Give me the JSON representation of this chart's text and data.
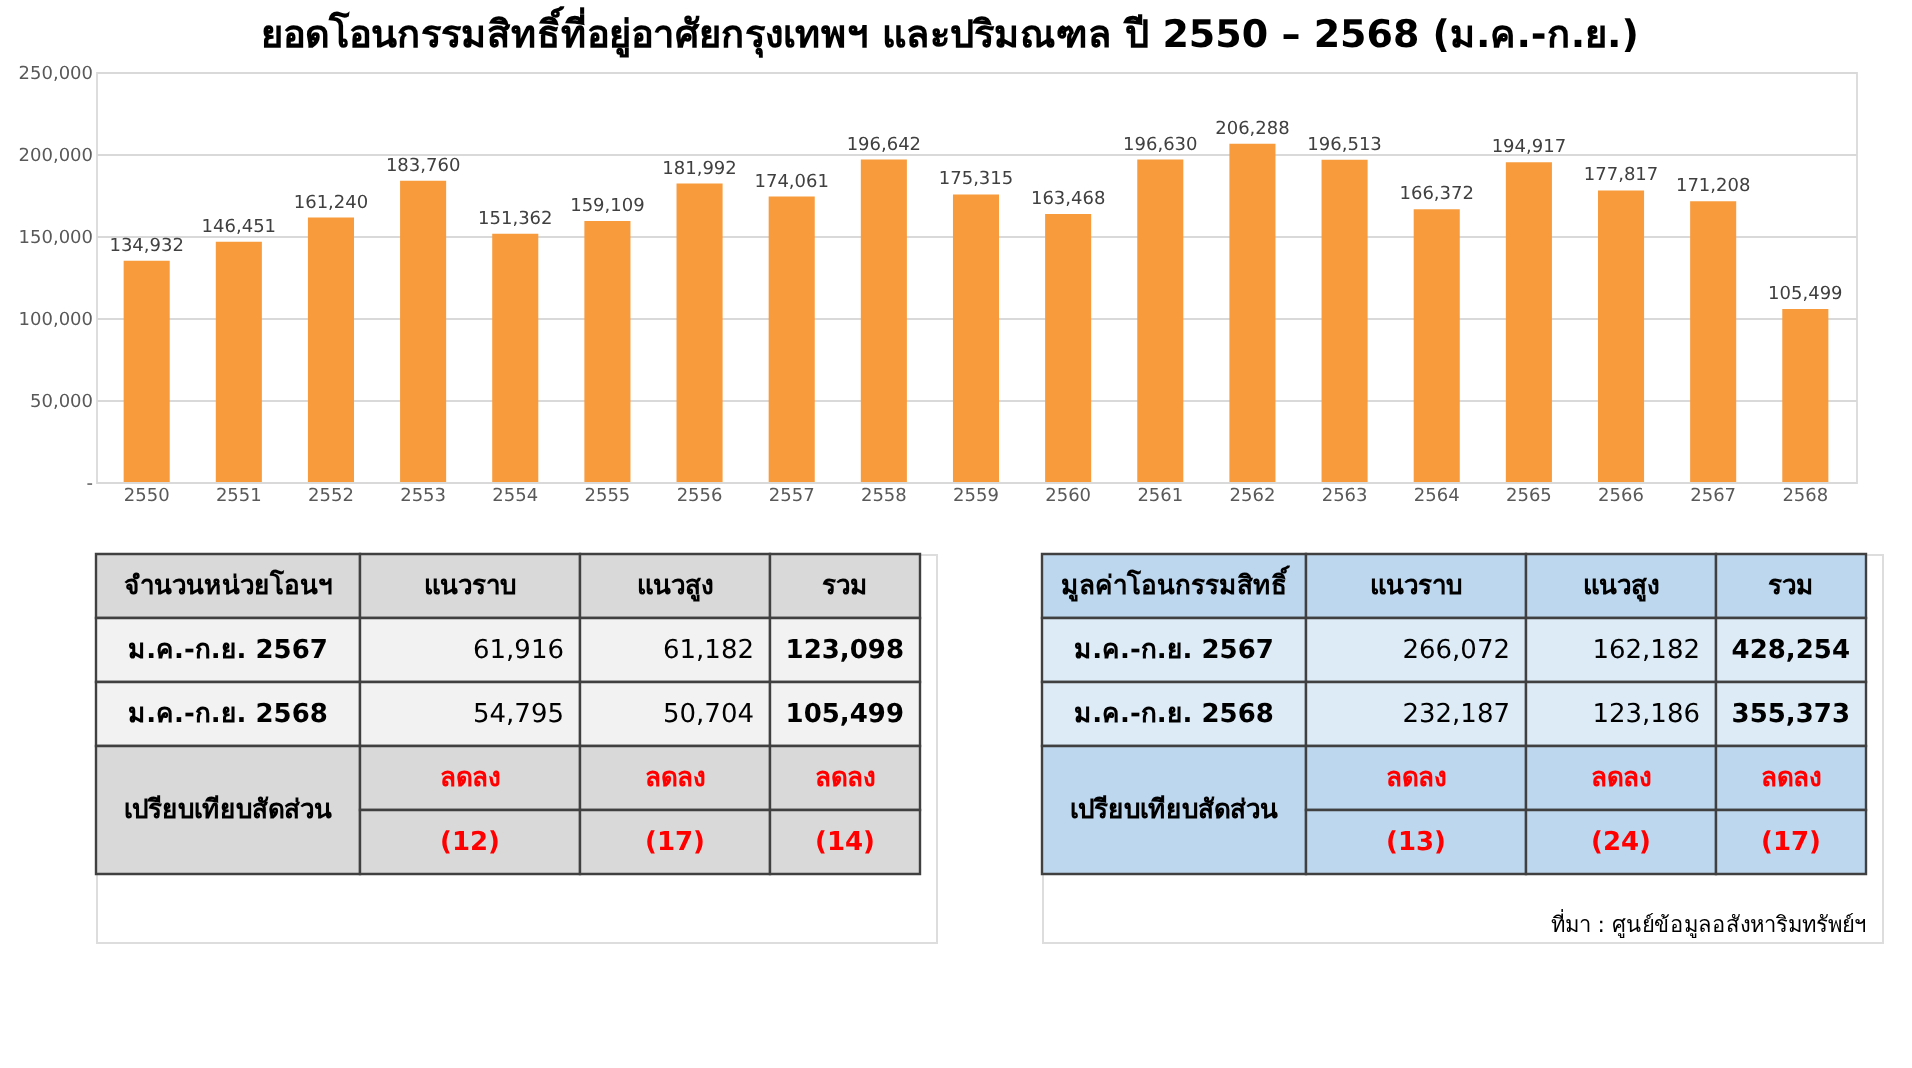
{
  "chart_data": [
    {
      "type": "bar",
      "title": "ยอดโอนกรรมสิทธิ์ที่อยู่อาศัยกรุงเทพฯ และปริมณฑล ปี 2550 – 2568 (ม.ค.-ก.ย.)",
      "categories": [
        "2550",
        "2551",
        "2552",
        "2553",
        "2554",
        "2555",
        "2556",
        "2557",
        "2558",
        "2559",
        "2560",
        "2561",
        "2562",
        "2563",
        "2564",
        "2565",
        "2566",
        "2567",
        "2568"
      ],
      "values": [
        134932,
        146451,
        161240,
        183760,
        151362,
        159109,
        181992,
        174061,
        196642,
        175315,
        163468,
        196630,
        206288,
        196513,
        166372,
        194917,
        177817,
        171208,
        105499
      ],
      "color": "#f79b3c",
      "ylim": [
        0,
        250000
      ],
      "yticks": [
        {
          "value": 0,
          "label": "-"
        },
        {
          "value": 50000,
          "label": "50,000"
        },
        {
          "value": 100000,
          "label": "100,000"
        },
        {
          "value": 150000,
          "label": "150,000"
        },
        {
          "value": 200000,
          "label": "200,000"
        },
        {
          "value": 250000,
          "label": "250,000"
        }
      ],
      "value_labels": [
        "134,932",
        "146,451",
        "161,240",
        "183,760",
        "151,362",
        "159,109",
        "181,992",
        "174,061",
        "196,642",
        "175,315",
        "163,468",
        "196,630",
        "206,288",
        "196,513",
        "166,372",
        "194,917",
        "177,817",
        "171,208",
        "105,499"
      ],
      "grid": "y"
    },
    {
      "type": "other",
      "annotations": [
        "จำนวนหน่วยโอนฯ",
        "แนวราบ",
        "แนวสูง",
        "รวม",
        "ม.ค.-ก.ย. 2567",
        "61,916",
        "61,182",
        "123,098",
        "ม.ค.-ก.ย. 2568",
        "54,795",
        "50,704",
        "105,499",
        "เปรียบเทียบสัดส่วน",
        "ลดลง",
        "ลดลง",
        "ลดลง",
        "(12)",
        "(17)",
        "(14)"
      ]
    },
    {
      "type": "other",
      "annotations": [
        "มูลค่าโอนกรรมสิทธิ์",
        "แนวราบ",
        "แนวสูง",
        "รวม",
        "ม.ค.-ก.ย. 2567",
        "266,072",
        "162,182",
        "428,254",
        "ม.ค.-ก.ย. 2568",
        "232,187",
        "123,186",
        "355,373",
        "เปรียบเทียบสัดส่วน",
        "ลดลง",
        "ลดลง",
        "ลดลง",
        "(13)",
        "(24)",
        "(17)",
        "ที่มา : ศูนย์ข้อมูลอสังหาริมทรัพย์ฯ"
      ]
    }
  ]
}
